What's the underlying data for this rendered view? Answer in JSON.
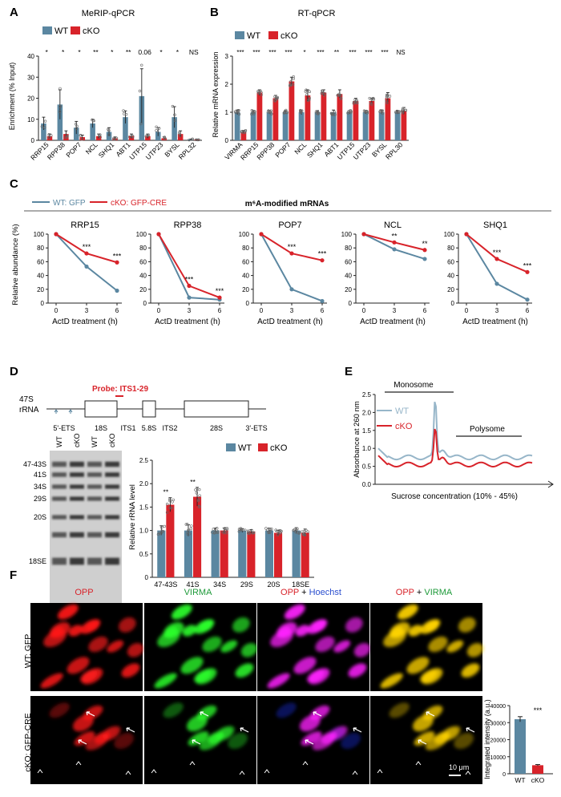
{
  "panel_labels": [
    "A",
    "B",
    "C",
    "D",
    "E",
    "F"
  ],
  "colors": {
    "wt": "#5b87a1",
    "wt_light": "#97b6c9",
    "cko": "#d8232a",
    "axis": "#222222",
    "dot": "#888888"
  },
  "chart_data": [
    {
      "id": "A",
      "type": "bar",
      "title": "MeRIP-qPCR",
      "ylabel": "Enrichment (% Input)",
      "ylim": [
        0,
        40
      ],
      "yticks": [
        0,
        10,
        20,
        30,
        40
      ],
      "categories": [
        "RRP15",
        "RPP38",
        "POP7",
        "NCL",
        "SHQ1",
        "ABT1",
        "UTP15",
        "UTP23",
        "BYSL",
        "RPL32"
      ],
      "series": [
        {
          "name": "WT",
          "values": [
            8,
            17,
            6,
            8,
            4,
            11,
            21,
            4,
            11,
            0.4
          ],
          "err": [
            3,
            7,
            3,
            2,
            2,
            3,
            13,
            2,
            5,
            0.2
          ]
        },
        {
          "name": "cKO",
          "values": [
            2,
            3,
            1.5,
            2,
            1,
            2,
            2,
            1,
            3,
            0.3
          ],
          "err": [
            1,
            1.5,
            1,
            1,
            0.6,
            1,
            1,
            0.6,
            1.5,
            0.1
          ]
        }
      ],
      "sig": [
        "*",
        "*",
        "*",
        "**",
        "*",
        "**",
        "0.06",
        "*",
        "*",
        "NS"
      ]
    },
    {
      "id": "B",
      "type": "bar",
      "title": "RT-qPCR",
      "ylabel": "Relative mRNA expression",
      "ylim": [
        0,
        3
      ],
      "yticks": [
        0,
        1,
        2,
        3
      ],
      "categories": [
        "VIRMA",
        "RRP15",
        "RPP38",
        "POP7",
        "NCL",
        "SHQ1",
        "ABT1",
        "UTP15",
        "UTP23",
        "BYSL",
        "RPL30"
      ],
      "series": [
        {
          "name": "WT",
          "values": [
            1,
            1,
            1,
            1,
            1,
            1,
            1,
            1,
            1,
            1,
            1
          ],
          "err": [
            0.08,
            0.06,
            0.06,
            0.06,
            0.08,
            0.06,
            0.08,
            0.06,
            0.06,
            0.06,
            0.06
          ]
        },
        {
          "name": "cKO",
          "values": [
            0.3,
            1.7,
            1.5,
            2.1,
            1.6,
            1.7,
            1.65,
            1.4,
            1.4,
            1.5,
            1.05
          ],
          "err": [
            0.05,
            0.1,
            0.1,
            0.15,
            0.2,
            0.1,
            0.15,
            0.1,
            0.1,
            0.2,
            0.12
          ]
        }
      ],
      "sig": [
        "***",
        "***",
        "***",
        "***",
        "*",
        "***",
        "**",
        "***",
        "***",
        "***",
        "NS"
      ]
    },
    {
      "id": "C",
      "type": "line",
      "title": "m⁶A-modified mRNAs",
      "ylabel": "Relative abundance (%)",
      "xlabel": "ActD treatment (h)",
      "legend": [
        "WT: GFP",
        "cKO: GFP-CRE"
      ],
      "x": [
        0,
        3,
        6
      ],
      "xticks": [
        "0",
        "3",
        "6"
      ],
      "ylim": [
        0,
        100
      ],
      "yticks": [
        0,
        20,
        40,
        60,
        80,
        100
      ],
      "subplots": [
        {
          "name": "RRP15",
          "wt": [
            100,
            53,
            18
          ],
          "cko": [
            100,
            72,
            59
          ],
          "sig": [
            "***",
            "***"
          ]
        },
        {
          "name": "RPP38",
          "wt": [
            100,
            8,
            5
          ],
          "cko": [
            100,
            25,
            8
          ],
          "sig": [
            "***",
            "***"
          ]
        },
        {
          "name": "POP7",
          "wt": [
            100,
            20,
            3
          ],
          "cko": [
            100,
            72,
            62
          ],
          "sig": [
            "***",
            "***"
          ]
        },
        {
          "name": "NCL",
          "wt": [
            100,
            78,
            64
          ],
          "cko": [
            100,
            88,
            77
          ],
          "sig": [
            "**",
            "**"
          ]
        },
        {
          "name": "SHQ1",
          "wt": [
            100,
            28,
            5
          ],
          "cko": [
            100,
            64,
            45
          ],
          "sig": [
            "***",
            "***"
          ]
        }
      ]
    },
    {
      "id": "D",
      "type": "bar",
      "ylabel": "Relative rRNA level",
      "ylim": [
        0,
        2.5
      ],
      "yticks": [
        "0",
        "0.5",
        "1.0",
        "1.5",
        "2.0",
        "2.5"
      ],
      "categories": [
        "47-43S",
        "41S",
        "34S",
        "29S",
        "20S",
        "18SE"
      ],
      "series": [
        {
          "name": "WT",
          "values": [
            1,
            1,
            1,
            1,
            1,
            1
          ],
          "err": [
            0.1,
            0.12,
            0.05,
            0.04,
            0.05,
            0.06
          ]
        },
        {
          "name": "cKO",
          "values": [
            1.55,
            1.72,
            1,
            0.98,
            0.95,
            0.95
          ],
          "err": [
            0.15,
            0.2,
            0.05,
            0.04,
            0.05,
            0.08
          ]
        }
      ],
      "sig": [
        "**",
        "**",
        "",
        "",
        "",
        ""
      ]
    },
    {
      "id": "E",
      "type": "line",
      "ylabel": "Absorbance at 260 nm",
      "xlabel": "Sucrose concentration (10% - 45%)",
      "ylim": [
        0,
        2.5
      ],
      "yticks": [
        "0.0",
        "0.5",
        "1.0",
        "1.5",
        "2.0",
        "2.5"
      ],
      "legend": [
        "WT",
        "cKO"
      ],
      "annotations": [
        "Monosome",
        "Polysome"
      ]
    },
    {
      "id": "F_bar",
      "type": "bar",
      "ylabel": "Integrated intensity (a.u.)",
      "ylim": [
        0,
        40000
      ],
      "yticks": [
        "0",
        "10000",
        "20000",
        "30000",
        "40000"
      ],
      "categories": [
        "WT",
        "cKO"
      ],
      "values": [
        32000,
        5000
      ],
      "err": [
        1500,
        400
      ],
      "sig": "***"
    }
  ],
  "panel_D_schematic": {
    "precursor": [
      "47S",
      "rRNA"
    ],
    "probe": "Probe: ITS1-29",
    "segments": [
      "5'-ETS",
      "18S",
      "ITS1",
      "5.8S",
      "ITS2",
      "28S",
      "3'-ETS"
    ],
    "lane_labels": [
      "WT",
      "cKO",
      "WT",
      "cKO"
    ],
    "band_labels": [
      "47-43S",
      "41S",
      "34S",
      "29S",
      "20S",
      "18SE"
    ]
  },
  "panel_F": {
    "columns": [
      "OPP",
      "VIRMA",
      "OPP + Hoechst",
      "OPP + VIRMA"
    ],
    "col_pieces": [
      [
        "OPP",
        ""
      ],
      [
        "VIRMA",
        ""
      ],
      [
        "OPP",
        " + ",
        "Hoechst"
      ],
      [
        "OPP",
        " + ",
        "VIRMA"
      ]
    ],
    "rows": [
      "WT: GFP",
      "cKO: GFP-CRE"
    ],
    "scale_bar": "10 μm"
  }
}
